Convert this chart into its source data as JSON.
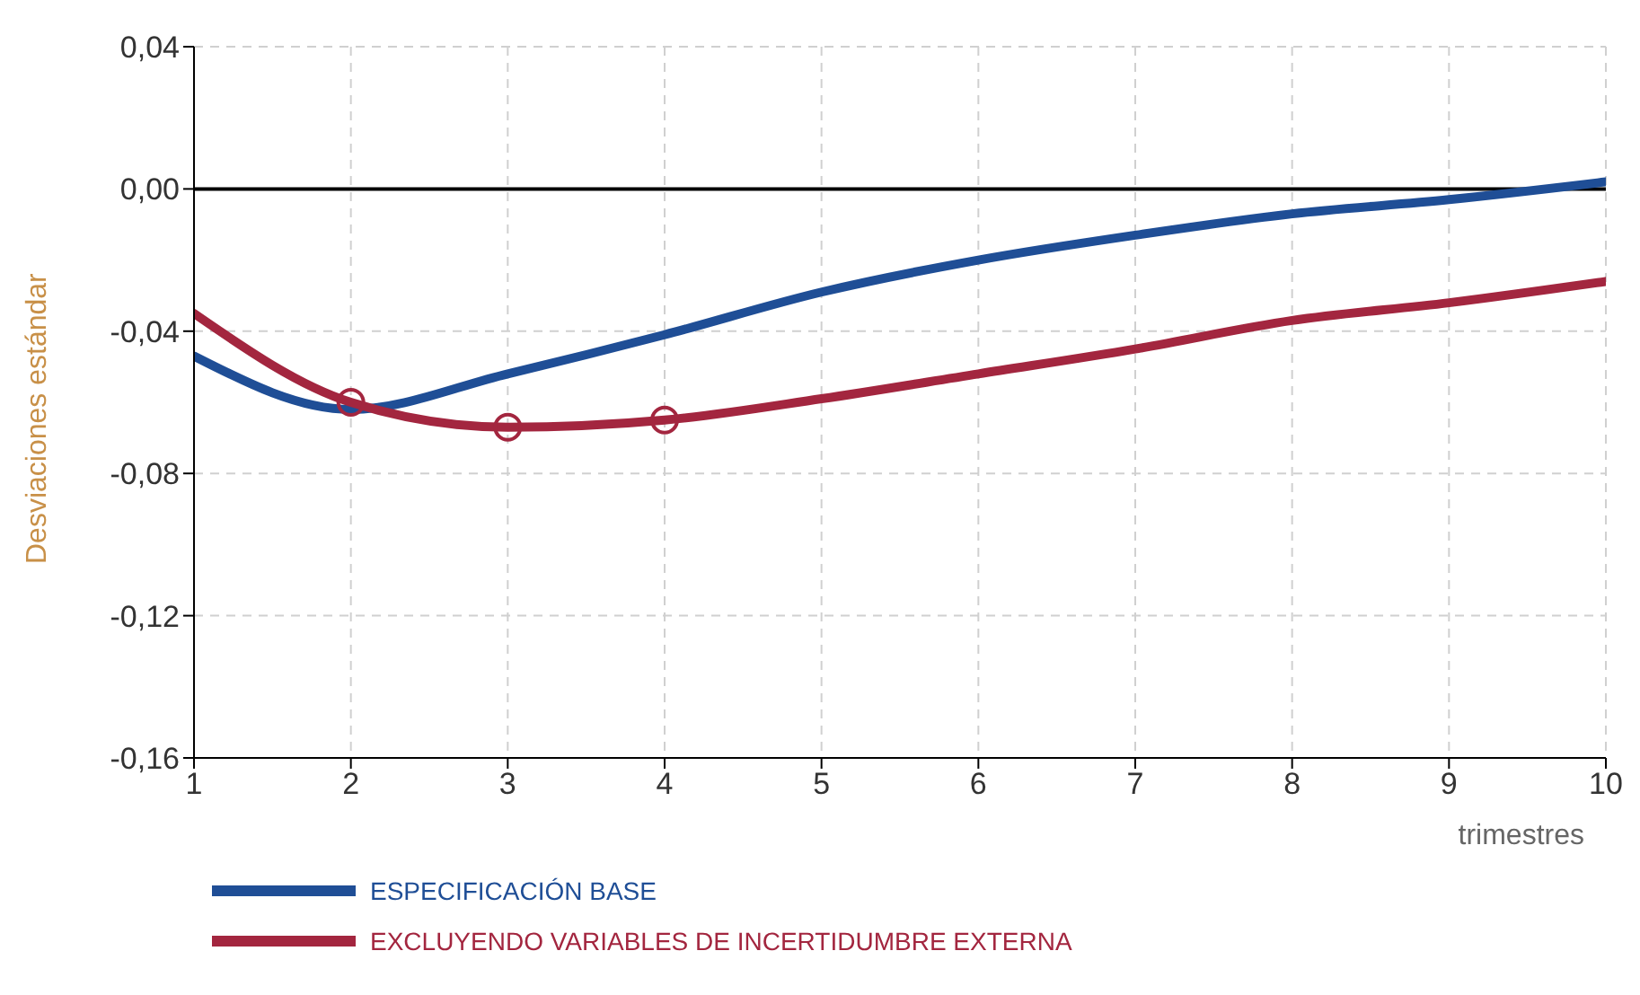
{
  "chart_data": {
    "type": "line",
    "ylabel": "Desviaciones estándar",
    "xlabel": "trimestres",
    "x": [
      1,
      2,
      3,
      4,
      5,
      6,
      7,
      8,
      9,
      10
    ],
    "xlim": [
      1,
      10
    ],
    "xticks": [
      1,
      2,
      3,
      4,
      5,
      6,
      7,
      8,
      9,
      10
    ],
    "ylim": [
      -0.16,
      0.04
    ],
    "yticks": [
      {
        "value": -0.16,
        "label": "-0,16"
      },
      {
        "value": -0.12,
        "label": "-0,12"
      },
      {
        "value": -0.08,
        "label": "-0,08"
      },
      {
        "value": -0.04,
        "label": "-0,04"
      },
      {
        "value": 0,
        "label": "0,00"
      },
      {
        "value": 0.04,
        "label": "0,04"
      }
    ],
    "grid": true,
    "legend": "bottom",
    "marker": "none",
    "line_style": "solid",
    "ref_lines": [
      {
        "axis": "y",
        "value": 0,
        "color": "#000000"
      }
    ],
    "series": [
      {
        "name": "ESPECIFICACIÓN BASE",
        "color": "#1f4e96",
        "values": [
          -0.047,
          -0.062,
          -0.052,
          -0.041,
          -0.029,
          -0.02,
          -0.013,
          -0.007,
          -0.003,
          0.002
        ]
      },
      {
        "name": "EXCLUYENDO VARIABLES DE INCERTIDUMBRE EXTERNA",
        "color": "#a3263f",
        "values": [
          -0.035,
          -0.06,
          -0.067,
          -0.065,
          -0.059,
          -0.052,
          -0.045,
          -0.037,
          -0.032,
          -0.026
        ]
      },
      {
        "type": "scatter",
        "color": "#a3263f",
        "marker": "circle",
        "x": [
          2,
          3,
          4
        ],
        "values": [
          -0.06,
          -0.067,
          -0.065
        ]
      }
    ]
  }
}
